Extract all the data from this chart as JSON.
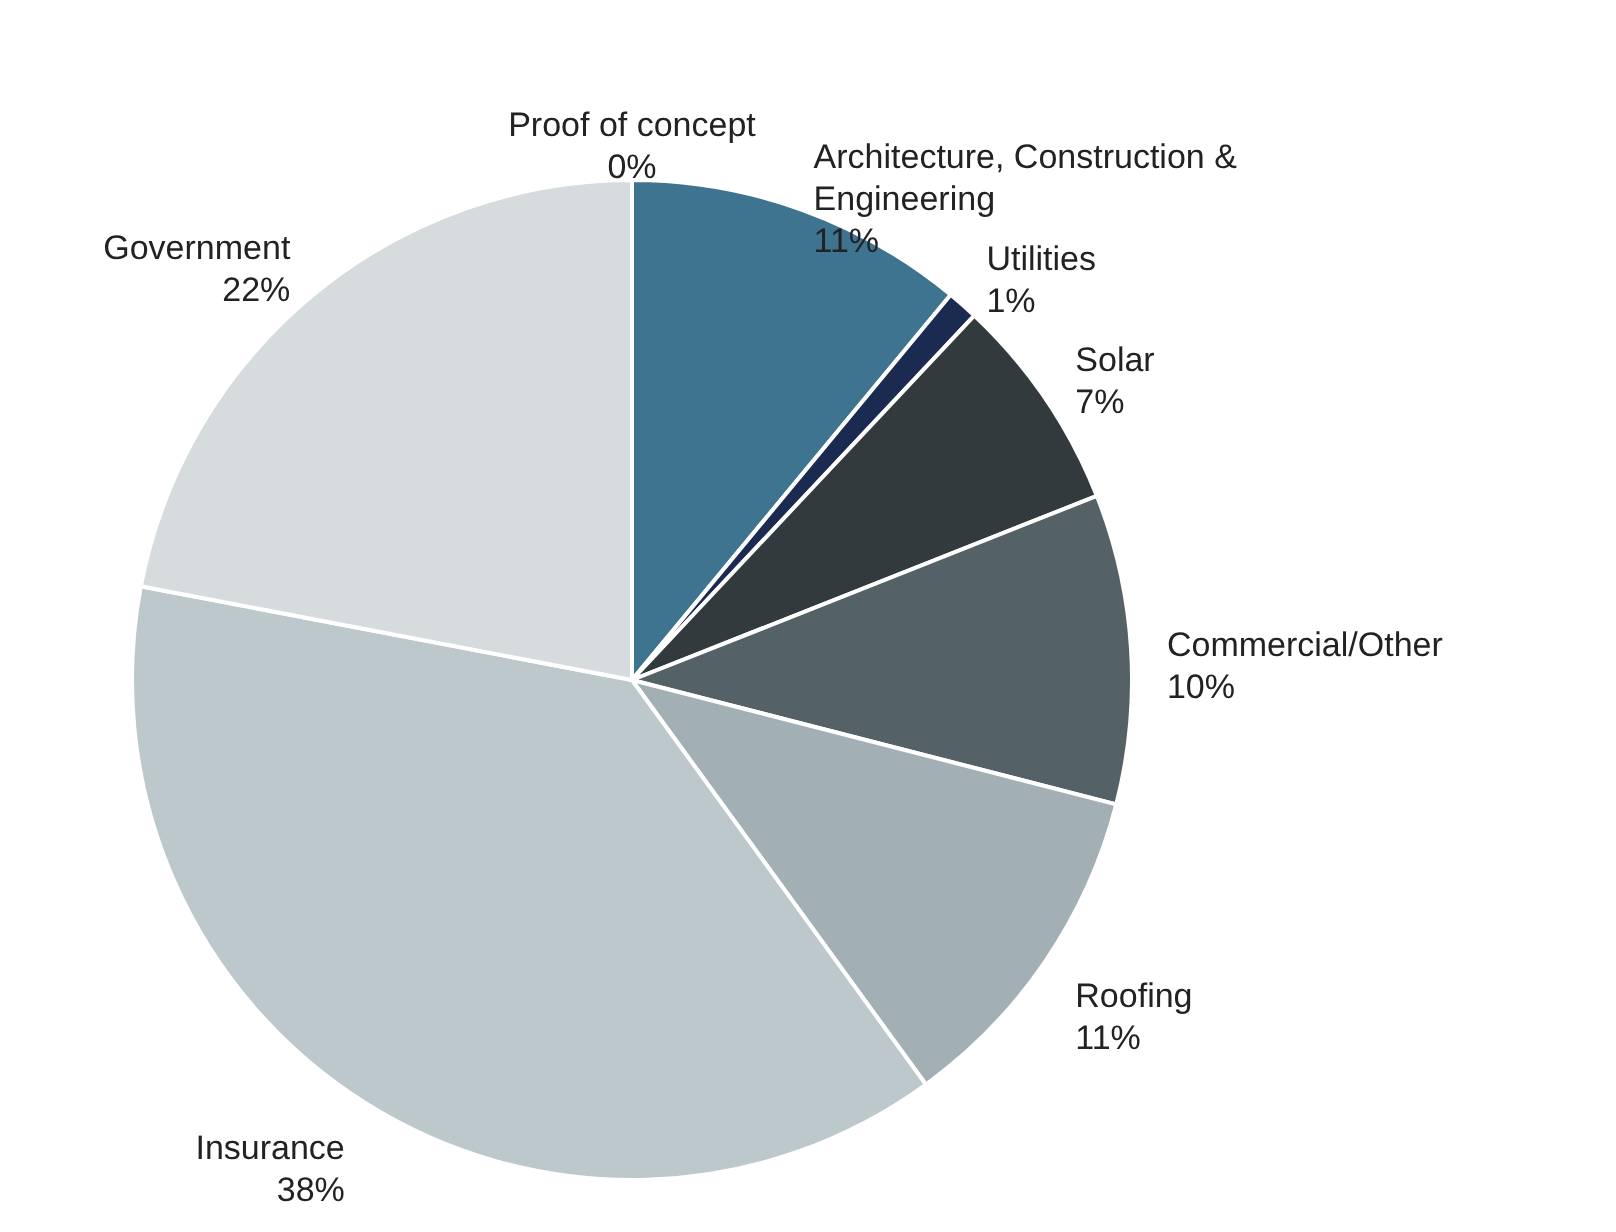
{
  "chart_data": {
    "type": "pie",
    "categories": [
      "Architecture, Construction & Engineering",
      "Utilities",
      "Solar",
      "Commercial/Other",
      "Roofing",
      "Insurance",
      "Government",
      "Proof of concept"
    ],
    "values": [
      11,
      1,
      7,
      10,
      11,
      38,
      22,
      0
    ],
    "value_labels": [
      "11%",
      "1%",
      "7%",
      "10%",
      "11%",
      "38%",
      "22%",
      "0%"
    ],
    "colors": [
      "#3e7490",
      "#1a2a50",
      "#333a3e",
      "#546167",
      "#a2b0b5",
      "#bcc8cb",
      "#d6dbde",
      "#f4a582"
    ]
  }
}
